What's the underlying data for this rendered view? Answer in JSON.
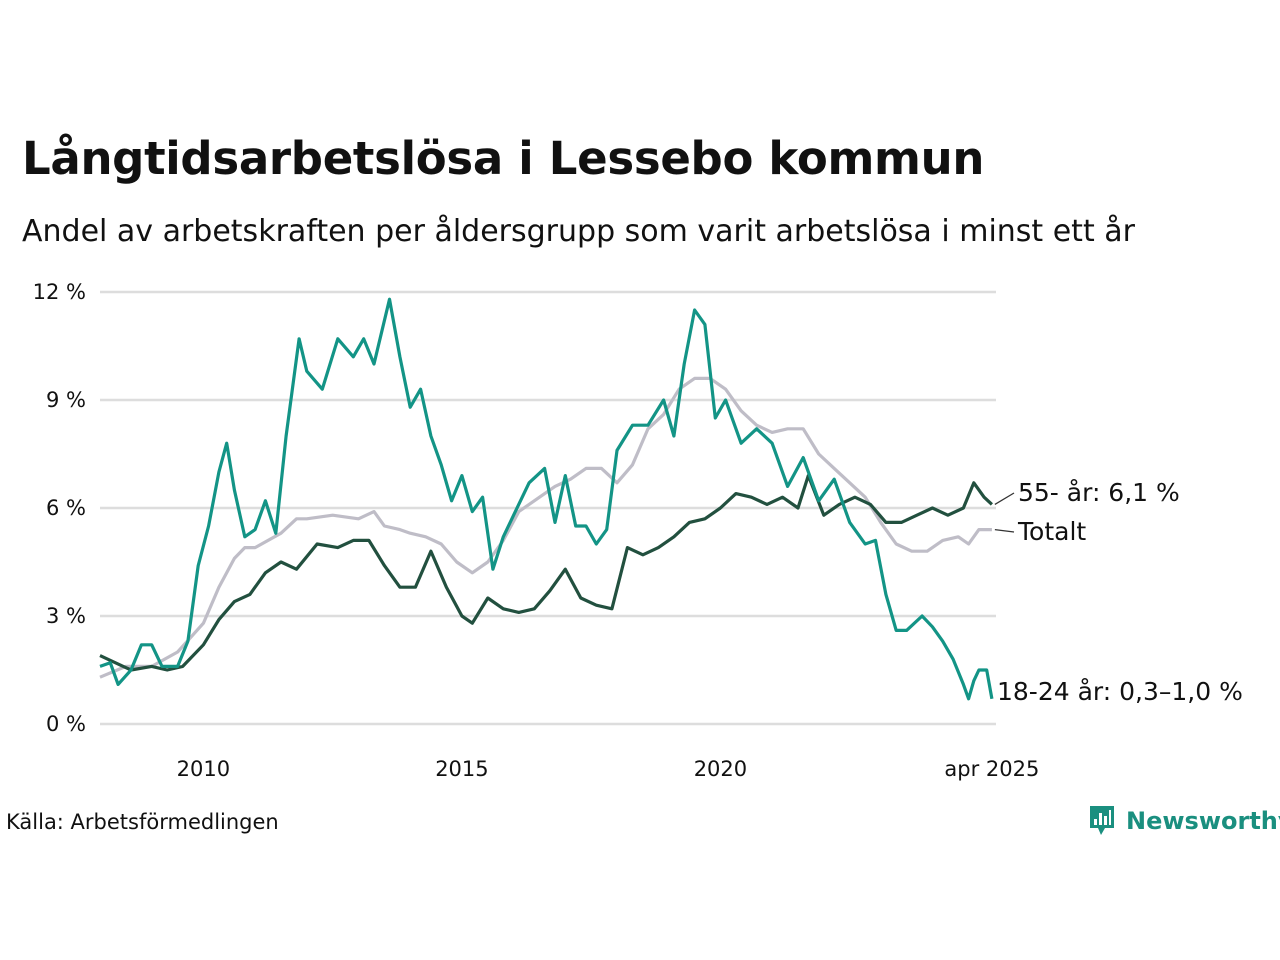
{
  "title": "Långtidsarbetslösa i Lessebo kommun",
  "subtitle": "Andel av arbetskraften per åldersgrupp som varit arbetslösa i minst ett år",
  "source": "Källa: Arbetsförmedlingen",
  "brand": "Newsworthy",
  "colors": {
    "youth": "#139486",
    "senior": "#22503f",
    "total": "#bfbdc7",
    "grid": "#dddddd",
    "brand": "#1a8f7f"
  },
  "chart_data": {
    "type": "line",
    "ylim": [
      0,
      12
    ],
    "xlim": [
      2008.0,
      2025.33
    ],
    "y_ticks": [
      0,
      3,
      6,
      9,
      12
    ],
    "y_tick_labels": [
      "0 %",
      "3 %",
      "6 %",
      "9 %",
      "12 %"
    ],
    "x_ticks": [
      2010,
      2015,
      2020,
      2025.25
    ],
    "x_tick_labels": [
      "2010",
      "2015",
      "2020",
      "apr 2025"
    ],
    "grid": true,
    "series": [
      {
        "name": "Totalt",
        "label": "Totalt",
        "color_key": "total",
        "points": [
          [
            2008.0,
            1.3
          ],
          [
            2008.5,
            1.6
          ],
          [
            2009.0,
            1.6
          ],
          [
            2009.5,
            2.0
          ],
          [
            2010.0,
            2.8
          ],
          [
            2010.3,
            3.8
          ],
          [
            2010.6,
            4.6
          ],
          [
            2010.8,
            4.9
          ],
          [
            2011.0,
            4.9
          ],
          [
            2011.5,
            5.3
          ],
          [
            2011.8,
            5.7
          ],
          [
            2012.0,
            5.7
          ],
          [
            2012.5,
            5.8
          ],
          [
            2013.0,
            5.7
          ],
          [
            2013.3,
            5.9
          ],
          [
            2013.5,
            5.5
          ],
          [
            2013.8,
            5.4
          ],
          [
            2014.0,
            5.3
          ],
          [
            2014.3,
            5.2
          ],
          [
            2014.6,
            5.0
          ],
          [
            2014.9,
            4.5
          ],
          [
            2015.2,
            4.2
          ],
          [
            2015.5,
            4.5
          ],
          [
            2015.8,
            5.1
          ],
          [
            2016.1,
            5.9
          ],
          [
            2016.5,
            6.3
          ],
          [
            2016.8,
            6.6
          ],
          [
            2017.1,
            6.8
          ],
          [
            2017.4,
            7.1
          ],
          [
            2017.7,
            7.1
          ],
          [
            2018.0,
            6.7
          ],
          [
            2018.3,
            7.2
          ],
          [
            2018.6,
            8.2
          ],
          [
            2018.9,
            8.6
          ],
          [
            2019.2,
            9.3
          ],
          [
            2019.5,
            9.6
          ],
          [
            2019.8,
            9.6
          ],
          [
            2020.1,
            9.3
          ],
          [
            2020.4,
            8.7
          ],
          [
            2020.7,
            8.3
          ],
          [
            2021.0,
            8.1
          ],
          [
            2021.3,
            8.2
          ],
          [
            2021.6,
            8.2
          ],
          [
            2021.9,
            7.5
          ],
          [
            2022.2,
            7.1
          ],
          [
            2022.5,
            6.7
          ],
          [
            2022.8,
            6.3
          ],
          [
            2023.1,
            5.6
          ],
          [
            2023.4,
            5.0
          ],
          [
            2023.7,
            4.8
          ],
          [
            2024.0,
            4.8
          ],
          [
            2024.3,
            5.1
          ],
          [
            2024.6,
            5.2
          ],
          [
            2024.8,
            5.0
          ],
          [
            2025.0,
            5.4
          ],
          [
            2025.25,
            5.4
          ]
        ]
      },
      {
        "name": "55- år",
        "label": "55- år: 6,1 %",
        "color_key": "senior",
        "points": [
          [
            2008.0,
            1.9
          ],
          [
            2008.3,
            1.7
          ],
          [
            2008.6,
            1.5
          ],
          [
            2009.0,
            1.6
          ],
          [
            2009.3,
            1.5
          ],
          [
            2009.6,
            1.6
          ],
          [
            2010.0,
            2.2
          ],
          [
            2010.3,
            2.9
          ],
          [
            2010.6,
            3.4
          ],
          [
            2010.9,
            3.6
          ],
          [
            2011.2,
            4.2
          ],
          [
            2011.5,
            4.5
          ],
          [
            2011.8,
            4.3
          ],
          [
            2012.2,
            5.0
          ],
          [
            2012.6,
            4.9
          ],
          [
            2012.9,
            5.1
          ],
          [
            2013.2,
            5.1
          ],
          [
            2013.5,
            4.4
          ],
          [
            2013.8,
            3.8
          ],
          [
            2014.1,
            3.8
          ],
          [
            2014.4,
            4.8
          ],
          [
            2014.7,
            3.8
          ],
          [
            2015.0,
            3.0
          ],
          [
            2015.2,
            2.8
          ],
          [
            2015.5,
            3.5
          ],
          [
            2015.8,
            3.2
          ],
          [
            2016.1,
            3.1
          ],
          [
            2016.4,
            3.2
          ],
          [
            2016.7,
            3.7
          ],
          [
            2017.0,
            4.3
          ],
          [
            2017.3,
            3.5
          ],
          [
            2017.6,
            3.3
          ],
          [
            2017.9,
            3.2
          ],
          [
            2018.2,
            4.9
          ],
          [
            2018.5,
            4.7
          ],
          [
            2018.8,
            4.9
          ],
          [
            2019.1,
            5.2
          ],
          [
            2019.4,
            5.6
          ],
          [
            2019.7,
            5.7
          ],
          [
            2020.0,
            6.0
          ],
          [
            2020.3,
            6.4
          ],
          [
            2020.6,
            6.3
          ],
          [
            2020.9,
            6.1
          ],
          [
            2021.2,
            6.3
          ],
          [
            2021.5,
            6.0
          ],
          [
            2021.7,
            6.9
          ],
          [
            2022.0,
            5.8
          ],
          [
            2022.3,
            6.1
          ],
          [
            2022.6,
            6.3
          ],
          [
            2022.9,
            6.1
          ],
          [
            2023.2,
            5.6
          ],
          [
            2023.5,
            5.6
          ],
          [
            2023.8,
            5.8
          ],
          [
            2024.1,
            6.0
          ],
          [
            2024.4,
            5.8
          ],
          [
            2024.7,
            6.0
          ],
          [
            2024.9,
            6.7
          ],
          [
            2025.1,
            6.3
          ],
          [
            2025.25,
            6.1
          ]
        ]
      },
      {
        "name": "18-24 år",
        "label": "18-24 år: 0,3–1,0 %",
        "color_key": "youth",
        "points": [
          [
            2008.0,
            1.6
          ],
          [
            2008.2,
            1.7
          ],
          [
            2008.35,
            1.1
          ],
          [
            2008.6,
            1.5
          ],
          [
            2008.8,
            2.2
          ],
          [
            2009.0,
            2.2
          ],
          [
            2009.2,
            1.6
          ],
          [
            2009.5,
            1.6
          ],
          [
            2009.7,
            2.3
          ],
          [
            2009.9,
            4.4
          ],
          [
            2010.1,
            5.5
          ],
          [
            2010.3,
            7.0
          ],
          [
            2010.45,
            7.8
          ],
          [
            2010.6,
            6.5
          ],
          [
            2010.8,
            5.2
          ],
          [
            2011.0,
            5.4
          ],
          [
            2011.2,
            6.2
          ],
          [
            2011.4,
            5.3
          ],
          [
            2011.6,
            8.0
          ],
          [
            2011.85,
            10.7
          ],
          [
            2012.0,
            9.8
          ],
          [
            2012.3,
            9.3
          ],
          [
            2012.6,
            10.7
          ],
          [
            2012.9,
            10.2
          ],
          [
            2013.1,
            10.7
          ],
          [
            2013.3,
            10.0
          ],
          [
            2013.6,
            11.8
          ],
          [
            2013.8,
            10.2
          ],
          [
            2014.0,
            8.8
          ],
          [
            2014.2,
            9.3
          ],
          [
            2014.4,
            8.0
          ],
          [
            2014.6,
            7.2
          ],
          [
            2014.8,
            6.2
          ],
          [
            2015.0,
            6.9
          ],
          [
            2015.2,
            5.9
          ],
          [
            2015.4,
            6.3
          ],
          [
            2015.6,
            4.3
          ],
          [
            2015.8,
            5.2
          ],
          [
            2016.0,
            5.8
          ],
          [
            2016.3,
            6.7
          ],
          [
            2016.6,
            7.1
          ],
          [
            2016.8,
            5.6
          ],
          [
            2017.0,
            6.9
          ],
          [
            2017.2,
            5.5
          ],
          [
            2017.4,
            5.5
          ],
          [
            2017.6,
            5.0
          ],
          [
            2017.8,
            5.4
          ],
          [
            2018.0,
            7.6
          ],
          [
            2018.3,
            8.3
          ],
          [
            2018.6,
            8.3
          ],
          [
            2018.9,
            9.0
          ],
          [
            2019.1,
            8.0
          ],
          [
            2019.3,
            10.0
          ],
          [
            2019.5,
            11.5
          ],
          [
            2019.7,
            11.1
          ],
          [
            2019.9,
            8.5
          ],
          [
            2020.1,
            9.0
          ],
          [
            2020.4,
            7.8
          ],
          [
            2020.7,
            8.2
          ],
          [
            2021.0,
            7.8
          ],
          [
            2021.3,
            6.6
          ],
          [
            2021.6,
            7.4
          ],
          [
            2021.9,
            6.2
          ],
          [
            2022.2,
            6.8
          ],
          [
            2022.5,
            5.6
          ],
          [
            2022.8,
            5.0
          ],
          [
            2023.0,
            5.1
          ],
          [
            2023.2,
            3.6
          ],
          [
            2023.4,
            2.6
          ],
          [
            2023.6,
            2.6
          ],
          [
            2023.9,
            3.0
          ],
          [
            2024.1,
            2.7
          ],
          [
            2024.3,
            2.3
          ],
          [
            2024.5,
            1.8
          ],
          [
            2024.7,
            1.1
          ],
          [
            2024.8,
            0.7
          ],
          [
            2024.9,
            1.2
          ],
          [
            2025.0,
            1.5
          ],
          [
            2025.15,
            1.5
          ],
          [
            2025.25,
            0.7
          ]
        ]
      }
    ]
  }
}
